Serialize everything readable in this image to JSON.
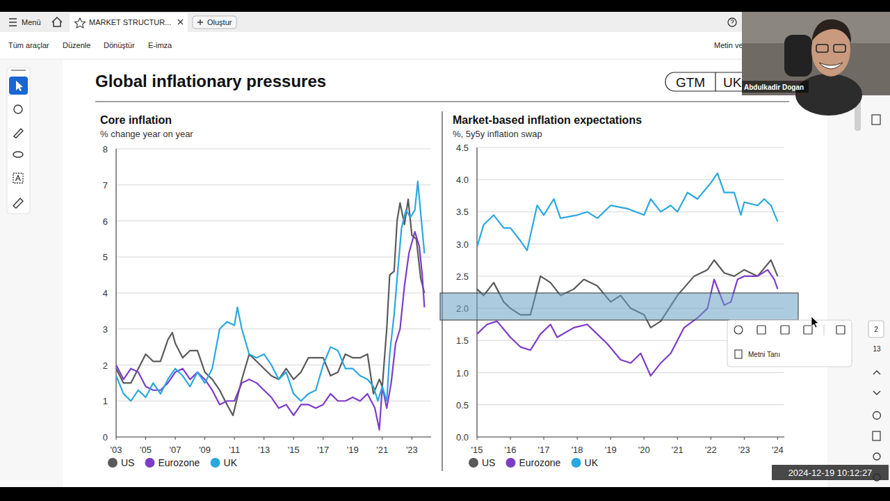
{
  "app": {
    "menu": "Menü",
    "tab": "MARKET STRUCTUR...",
    "create": "Oluştur",
    "toolbar": [
      "Tüm araçlar",
      "Düzenle",
      "Dönüştür",
      "E-imza"
    ],
    "toolbar_right": "Metin ve",
    "context_menu_item": "Metni Tanı",
    "page_current": "2",
    "page_total": "13"
  },
  "page": {
    "title": "Global inflationary pressures",
    "badges": [
      "GTM",
      "UK"
    ]
  },
  "video": {
    "name": "Abdulkadir Dogan",
    "timestamp": "2024-12-19 10:12:27"
  },
  "chart_data": [
    {
      "type": "line",
      "title": "Core inflation",
      "subtitle": "% change year on year",
      "xlim": [
        2003,
        2024.3
      ],
      "xticks": [
        {
          "value": 2003,
          "label": "'03"
        },
        {
          "value": 2005,
          "label": "'05"
        },
        {
          "value": 2007,
          "label": "'07"
        },
        {
          "value": 2009,
          "label": "'09"
        },
        {
          "value": 2011,
          "label": "'11"
        },
        {
          "value": 2013,
          "label": "'13"
        },
        {
          "value": 2015,
          "label": "'15"
        },
        {
          "value": 2017,
          "label": "'17"
        },
        {
          "value": 2019,
          "label": "'19"
        },
        {
          "value": 2021,
          "label": "'21"
        },
        {
          "value": 2023,
          "label": "'23"
        }
      ],
      "ylim": [
        0,
        8
      ],
      "yticks": [
        0,
        1,
        2,
        3,
        4,
        5,
        6,
        7,
        8
      ],
      "grid": true,
      "legend": "bottom",
      "series": [
        {
          "name": "US",
          "color": "#5a5a5a",
          "x": [
            2003,
            2003.5,
            2004,
            2004.5,
            2005,
            2005.5,
            2006,
            2006.5,
            2006.8,
            2007,
            2007.5,
            2008,
            2008.5,
            2009,
            2009.5,
            2010,
            2010.5,
            2010.9,
            2011.5,
            2012,
            2012.5,
            2013,
            2013.5,
            2014,
            2014.5,
            2015,
            2015.5,
            2016,
            2016.5,
            2017,
            2017.5,
            2018,
            2018.5,
            2019,
            2019.5,
            2020,
            2020.4,
            2020.8,
            2021,
            2021.3,
            2021.5,
            2021.8,
            2022,
            2022.2,
            2022.5,
            2022.75,
            2023,
            2023.3,
            2023.6,
            2023.85
          ],
          "values": [
            1.9,
            1.5,
            1.5,
            1.9,
            2.3,
            2.1,
            2.1,
            2.7,
            2.9,
            2.6,
            2.2,
            2.4,
            2.4,
            1.8,
            1.6,
            1.3,
            0.9,
            0.6,
            1.6,
            2.3,
            2.1,
            1.9,
            1.7,
            1.6,
            1.9,
            1.6,
            1.8,
            2.2,
            2.2,
            2.2,
            1.7,
            1.8,
            2.3,
            2.2,
            2.2,
            2.3,
            1.2,
            1.6,
            1.4,
            3.0,
            4.5,
            4.6,
            6.0,
            6.5,
            5.9,
            6.6,
            5.6,
            5.5,
            4.4,
            4.0
          ]
        },
        {
          "name": "Eurozone",
          "color": "#7d3cc8",
          "x": [
            2003,
            2003.5,
            2004,
            2004.5,
            2005,
            2005.5,
            2006,
            2006.5,
            2007,
            2007.5,
            2008,
            2008.5,
            2009,
            2009.5,
            2010,
            2010.5,
            2011,
            2011.5,
            2012,
            2012.5,
            2013,
            2013.5,
            2014,
            2014.5,
            2015,
            2015.5,
            2016,
            2016.5,
            2017,
            2017.5,
            2018,
            2018.5,
            2019,
            2019.5,
            2020,
            2020.5,
            2020.8,
            2021,
            2021.3,
            2021.6,
            2021.9,
            2022.2,
            2022.5,
            2022.8,
            2023.2,
            2023.5,
            2023.7,
            2023.85
          ],
          "values": [
            2.0,
            1.6,
            1.9,
            1.8,
            1.4,
            1.3,
            1.3,
            1.5,
            1.8,
            1.9,
            1.6,
            1.8,
            1.6,
            1.3,
            0.9,
            1.0,
            1.0,
            1.5,
            1.6,
            1.5,
            1.3,
            1.1,
            0.8,
            0.9,
            0.6,
            0.9,
            0.9,
            0.8,
            0.9,
            1.2,
            1.0,
            1.0,
            1.1,
            1.0,
            1.2,
            0.8,
            0.2,
            1.4,
            0.8,
            1.5,
            2.6,
            3.0,
            4.2,
            5.1,
            5.7,
            5.3,
            4.5,
            3.6
          ]
        },
        {
          "name": "UK",
          "color": "#29a8e0",
          "x": [
            2003,
            2003.5,
            2004,
            2004.5,
            2005,
            2005.5,
            2006,
            2006.5,
            2007,
            2007.5,
            2008,
            2008.5,
            2009,
            2009.5,
            2010,
            2010.5,
            2011,
            2011.2,
            2011.5,
            2012,
            2012.5,
            2013,
            2013.5,
            2014,
            2014.5,
            2015,
            2015.5,
            2016,
            2016.5,
            2017,
            2017.5,
            2018,
            2018.5,
            2019,
            2019.5,
            2020,
            2020.4,
            2020.7,
            2021,
            2021.3,
            2021.5,
            2021.8,
            2022,
            2022.3,
            2022.6,
            2022.9,
            2023.2,
            2023.4,
            2023.6,
            2023.85
          ],
          "values": [
            1.7,
            1.2,
            1.0,
            1.3,
            1.1,
            1.5,
            1.2,
            1.6,
            1.9,
            1.7,
            1.4,
            1.8,
            1.5,
            1.9,
            3.0,
            3.2,
            3.1,
            3.6,
            3.0,
            2.3,
            2.2,
            2.3,
            2.0,
            1.6,
            1.8,
            1.2,
            1.0,
            1.2,
            1.3,
            2.0,
            2.5,
            2.4,
            1.9,
            1.9,
            1.7,
            1.6,
            1.4,
            1.0,
            1.4,
            1.0,
            2.3,
            3.4,
            4.4,
            5.8,
            6.3,
            6.1,
            6.3,
            7.1,
            6.2,
            5.1
          ]
        }
      ]
    },
    {
      "type": "line",
      "title": "Market-based inflation expectations",
      "subtitle": "%, 5y5y inflation swap",
      "xlim": [
        2015,
        2024.2
      ],
      "xticks": [
        {
          "value": 2015,
          "label": "'15"
        },
        {
          "value": 2016,
          "label": "'16"
        },
        {
          "value": 2017,
          "label": "'17"
        },
        {
          "value": 2018,
          "label": "'18"
        },
        {
          "value": 2019,
          "label": "'19"
        },
        {
          "value": 2020,
          "label": "'20"
        },
        {
          "value": 2021,
          "label": "'21"
        },
        {
          "value": 2022,
          "label": "'22"
        },
        {
          "value": 2023,
          "label": "'23"
        },
        {
          "value": 2024,
          "label": "'24"
        }
      ],
      "ylim": [
        0,
        4.5
      ],
      "yticks": [
        {
          "value": 0,
          "label": "0.0"
        },
        0.5,
        {
          "value": 1,
          "label": "1.0"
        },
        1.5,
        {
          "value": 2,
          "label": "2.0"
        },
        2.5,
        {
          "value": 3,
          "label": "3.0"
        },
        3.5,
        {
          "value": 4,
          "label": "4.0"
        },
        4.5
      ],
      "grid": true,
      "legend": "bottom",
      "series": [
        {
          "name": "US",
          "color": "#5a5a5a",
          "x": [
            2015,
            2015.2,
            2015.5,
            2015.8,
            2016,
            2016.3,
            2016.6,
            2016.9,
            2017.2,
            2017.5,
            2017.9,
            2018.2,
            2018.6,
            2019,
            2019.3,
            2019.6,
            2020,
            2020.2,
            2020.5,
            2021,
            2021.5,
            2021.9,
            2022.1,
            2022.4,
            2022.7,
            2023,
            2023.4,
            2023.8,
            2024
          ],
          "values": [
            2.3,
            2.2,
            2.4,
            2.1,
            2.0,
            1.9,
            1.9,
            2.5,
            2.4,
            2.2,
            2.3,
            2.45,
            2.35,
            2.1,
            2.2,
            2.0,
            1.9,
            1.7,
            1.8,
            2.2,
            2.5,
            2.6,
            2.75,
            2.55,
            2.5,
            2.6,
            2.5,
            2.75,
            2.5
          ]
        },
        {
          "name": "Eurozone",
          "color": "#7d3cc8",
          "x": [
            2015,
            2015.3,
            2015.6,
            2016,
            2016.3,
            2016.6,
            2016.9,
            2017.2,
            2017.4,
            2017.9,
            2018.3,
            2018.6,
            2018.9,
            2019.3,
            2019.6,
            2019.9,
            2020.2,
            2020.5,
            2020.8,
            2021.2,
            2021.6,
            2021.9,
            2022.1,
            2022.4,
            2022.6,
            2022.8,
            2023,
            2023.4,
            2023.7,
            2023.9,
            2024
          ],
          "values": [
            1.6,
            1.75,
            1.8,
            1.55,
            1.4,
            1.35,
            1.6,
            1.75,
            1.55,
            1.7,
            1.75,
            1.6,
            1.45,
            1.2,
            1.15,
            1.3,
            0.95,
            1.15,
            1.3,
            1.7,
            1.85,
            2.0,
            2.45,
            2.05,
            2.1,
            2.45,
            2.5,
            2.5,
            2.6,
            2.45,
            2.3
          ]
        },
        {
          "name": "UK",
          "color": "#29a8e0",
          "x": [
            2015,
            2015.2,
            2015.5,
            2015.8,
            2016,
            2016.3,
            2016.5,
            2016.8,
            2017,
            2017.3,
            2017.5,
            2018,
            2018.3,
            2018.6,
            2019,
            2019.5,
            2020,
            2020.2,
            2020.5,
            2020.8,
            2021,
            2021.3,
            2021.6,
            2022,
            2022.2,
            2022.4,
            2022.7,
            2022.9,
            2023,
            2023.4,
            2023.6,
            2023.8,
            2024
          ],
          "values": [
            2.95,
            3.3,
            3.45,
            3.25,
            3.25,
            3.05,
            2.9,
            3.6,
            3.45,
            3.7,
            3.4,
            3.45,
            3.5,
            3.4,
            3.6,
            3.55,
            3.45,
            3.7,
            3.5,
            3.6,
            3.5,
            3.8,
            3.7,
            3.95,
            4.1,
            3.8,
            3.8,
            3.45,
            3.65,
            3.6,
            3.7,
            3.6,
            3.35
          ]
        }
      ]
    }
  ]
}
